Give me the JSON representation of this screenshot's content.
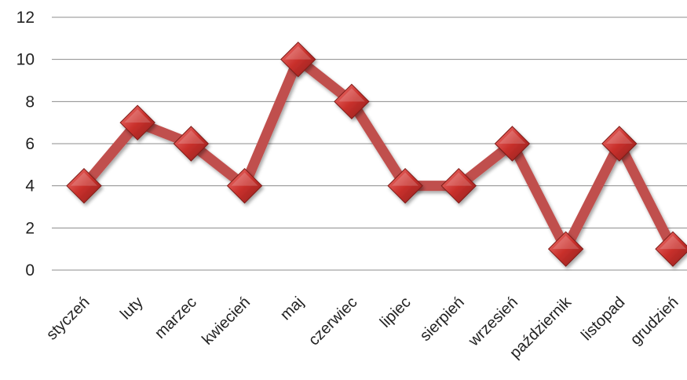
{
  "chart_data": {
    "type": "line",
    "categories": [
      "styczeń",
      "luty",
      "marzec",
      "kwiecień",
      "maj",
      "czerwiec",
      "lipiec",
      "sierpień",
      "wrzesień",
      "październik",
      "listopad",
      "grudzień"
    ],
    "series": [
      {
        "values": [
          4,
          7,
          6,
          4,
          10,
          8,
          4,
          4,
          6,
          1,
          6,
          1
        ]
      }
    ],
    "yticks": [
      "0",
      "2",
      "4",
      "6",
      "8",
      "10",
      "12"
    ],
    "ylim": [
      0,
      12
    ],
    "grid": true,
    "legend": "none",
    "marker": "diamond",
    "colors": {
      "line": "#c0504d",
      "marker": "#c0302d",
      "grid": "#8c8c8c"
    }
  }
}
